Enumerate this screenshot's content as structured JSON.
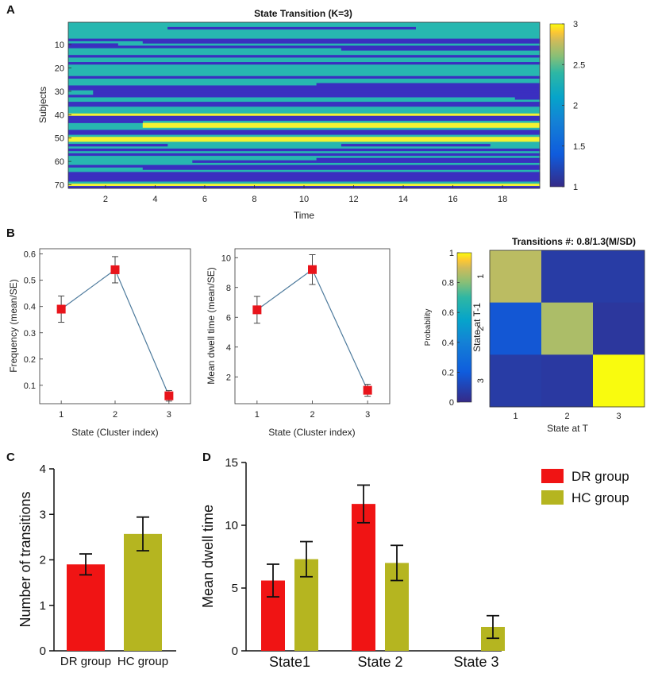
{
  "panel_labels": [
    "A",
    "B",
    "C",
    "D"
  ],
  "colors": {
    "state1": "#3a2fc0",
    "state2": "#27b7b0",
    "state3": "#f5f232",
    "marker": "#e8141b",
    "line": "#4d7a9c",
    "dr": "#f01414",
    "hc": "#b5b520"
  },
  "chart_data": [
    {
      "id": "A",
      "type": "heatmap",
      "title": "State Transition (K=3)",
      "xlabel": "Time",
      "ylabel": "Subjects",
      "xlim": [
        0.5,
        19.5
      ],
      "ylim": [
        0.5,
        71.5
      ],
      "xticks": [
        "2",
        "4",
        "6",
        "8",
        "10",
        "12",
        "14",
        "16",
        "18"
      ],
      "yticks": [
        "10",
        "20",
        "30",
        "40",
        "50",
        "60",
        "70"
      ],
      "colorbar_ticks": [
        "1",
        "1.5",
        "2",
        "2.5",
        "3"
      ],
      "n_subjects": 71,
      "n_time": 19,
      "default_state": 2,
      "runs": [
        [
          3,
          5,
          14,
          1
        ],
        [
          8,
          1,
          19,
          1
        ],
        [
          9,
          4,
          19,
          1
        ],
        [
          10,
          1,
          2,
          1
        ],
        [
          11,
          1,
          19,
          1
        ],
        [
          12,
          12,
          19,
          1
        ],
        [
          15,
          1,
          19,
          1
        ],
        [
          18,
          1,
          19,
          1
        ],
        [
          24,
          1,
          19,
          1
        ],
        [
          27,
          11,
          19,
          1
        ],
        [
          28,
          1,
          19,
          1
        ],
        [
          29,
          1,
          19,
          1
        ],
        [
          30,
          2,
          19,
          1
        ],
        [
          31,
          2,
          19,
          1
        ],
        [
          32,
          1,
          19,
          1
        ],
        [
          33,
          19,
          19,
          1
        ],
        [
          35,
          1,
          19,
          1
        ],
        [
          36,
          1,
          19,
          1
        ],
        [
          40,
          1,
          19,
          3
        ],
        [
          41,
          1,
          19,
          1
        ],
        [
          42,
          1,
          19,
          1
        ],
        [
          43,
          1,
          3,
          1
        ],
        [
          44,
          4,
          19,
          3
        ],
        [
          45,
          4,
          19,
          3
        ],
        [
          47,
          1,
          19,
          1
        ],
        [
          48,
          1,
          19,
          1
        ],
        [
          50,
          1,
          19,
          3
        ],
        [
          51,
          1,
          19,
          3
        ],
        [
          53,
          1,
          4,
          1
        ],
        [
          53,
          12,
          17,
          1
        ],
        [
          55,
          1,
          19,
          1
        ],
        [
          57,
          1,
          19,
          1
        ],
        [
          59,
          11,
          19,
          1
        ],
        [
          60,
          6,
          19,
          1
        ],
        [
          62,
          1,
          19,
          1
        ],
        [
          63,
          4,
          19,
          1
        ],
        [
          65,
          1,
          19,
          1
        ],
        [
          66,
          1,
          19,
          1
        ],
        [
          67,
          1,
          19,
          1
        ],
        [
          68,
          1,
          19,
          1
        ],
        [
          70,
          1,
          19,
          3
        ],
        [
          71,
          1,
          19,
          1
        ]
      ]
    },
    {
      "id": "B1",
      "type": "line",
      "xlabel": "State (Cluster index)",
      "ylabel": "Frequency (mean/SE)",
      "x": [
        1,
        2,
        3
      ],
      "y": [
        0.39,
        0.54,
        0.06
      ],
      "err": [
        0.05,
        0.05,
        0.02
      ],
      "xticks": [
        "1",
        "2",
        "3"
      ],
      "yticks": [
        "0.1",
        "0.2",
        "0.3",
        "0.4",
        "0.5",
        "0.6"
      ],
      "xlim": [
        0.6,
        3.4
      ],
      "ylim": [
        0.03,
        0.62
      ]
    },
    {
      "id": "B2",
      "type": "line",
      "xlabel": "State (Cluster index)",
      "ylabel": "Mean dwell time (mean/SE)",
      "x": [
        1,
        2,
        3
      ],
      "y": [
        6.5,
        9.2,
        1.1
      ],
      "err": [
        0.9,
        1.0,
        0.4
      ],
      "xticks": [
        "1",
        "2",
        "3"
      ],
      "yticks": [
        "2",
        "4",
        "6",
        "8",
        "10"
      ],
      "xlim": [
        0.6,
        3.4
      ],
      "ylim": [
        0.2,
        10.6
      ]
    },
    {
      "id": "B3",
      "type": "heatmap",
      "title": "Transitions #: 0.8/1.3(M/SD)",
      "xlabel": "State at T",
      "ylabel": "State at T-1",
      "xticks": [
        "1",
        "2",
        "3"
      ],
      "yticks": [
        "1",
        "2",
        "3"
      ],
      "matrix": [
        [
          0.87,
          0.07,
          0.07
        ],
        [
          0.18,
          0.85,
          0.05
        ],
        [
          0.07,
          0.06,
          1.0
        ]
      ],
      "colorbar_label": "Probability",
      "colorbar_ticks": [
        "0",
        "0.2",
        "0.4",
        "0.6",
        "0.8",
        "1"
      ]
    },
    {
      "id": "C",
      "type": "bar",
      "categories": [
        "DR group",
        "HC group"
      ],
      "values": [
        1.9,
        2.57
      ],
      "err": [
        0.23,
        0.37
      ],
      "ylabel": "Number of transitions",
      "yticks": [
        "0",
        "1",
        "2",
        "3",
        "4"
      ],
      "ylim": [
        0,
        4
      ]
    },
    {
      "id": "D",
      "type": "bar",
      "categories": [
        "State1",
        "State 2",
        "State 3"
      ],
      "series": [
        {
          "name": "DR group",
          "values": [
            5.6,
            11.7,
            0
          ],
          "err": [
            1.3,
            1.5,
            0
          ]
        },
        {
          "name": "HC group",
          "values": [
            7.3,
            7.0,
            1.9
          ],
          "err": [
            1.4,
            1.4,
            0.9
          ]
        }
      ],
      "ylabel": "Mean dwell time",
      "yticks": [
        "0",
        "5",
        "10",
        "15"
      ],
      "ylim": [
        0,
        15
      ],
      "legend_position": "top-right"
    }
  ]
}
